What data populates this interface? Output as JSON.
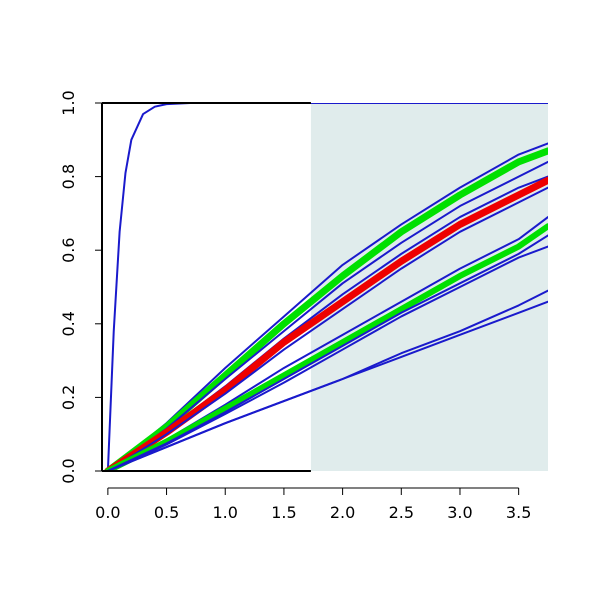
{
  "chart_data": {
    "type": "line",
    "title": "",
    "xlabel": "",
    "ylabel": "",
    "xlim": [
      -0.05,
      3.75
    ],
    "ylim": [
      0,
      1
    ],
    "x_ticks": [
      "0.0",
      "0.5",
      "1.0",
      "1.5",
      "2.0",
      "2.5",
      "3.0",
      "3.5"
    ],
    "y_ticks": [
      "0.0",
      "0.2",
      "0.4",
      "0.6",
      "0.8",
      "1.0"
    ],
    "shaded_region": {
      "x_from": 1.73,
      "x_to": 3.75,
      "color": "#e0ecec"
    },
    "colors": {
      "blue": "#1a1acc",
      "green": "#00e000",
      "red": "#ee0000"
    },
    "series": [
      {
        "color": "blue",
        "width": 2,
        "x": [
          0,
          0.05,
          0.1,
          0.15,
          0.2,
          0.3,
          0.4,
          0.5,
          0.7,
          1.7,
          3.75
        ],
        "y": [
          0,
          0.38,
          0.65,
          0.81,
          0.9,
          0.97,
          0.99,
          0.997,
          1.0,
          1.0,
          1.0
        ]
      },
      {
        "color": "blue",
        "width": 2,
        "x": [
          0,
          0.5,
          1.0,
          1.5,
          2.0,
          2.5,
          3.0,
          3.5,
          3.75
        ],
        "y": [
          0,
          0.13,
          0.28,
          0.42,
          0.56,
          0.67,
          0.77,
          0.86,
          0.89
        ]
      },
      {
        "color": "green",
        "width": 7,
        "x": [
          0,
          0.5,
          1.0,
          1.5,
          2.0,
          2.5,
          3.0,
          3.5,
          3.75
        ],
        "y": [
          0,
          0.12,
          0.26,
          0.4,
          0.53,
          0.65,
          0.75,
          0.84,
          0.87
        ]
      },
      {
        "color": "blue",
        "width": 2,
        "x": [
          0,
          0.5,
          1.0,
          1.5,
          2.0,
          2.5,
          3.0,
          3.5,
          3.75
        ],
        "y": [
          0,
          0.115,
          0.25,
          0.38,
          0.51,
          0.62,
          0.72,
          0.8,
          0.84
        ]
      },
      {
        "color": "blue",
        "width": 2,
        "x": [
          0,
          0.5,
          1.0,
          1.5,
          2.0,
          2.5,
          3.0,
          3.5,
          3.75
        ],
        "y": [
          0,
          0.11,
          0.23,
          0.36,
          0.48,
          0.59,
          0.69,
          0.77,
          0.8
        ]
      },
      {
        "color": "red",
        "width": 7,
        "x": [
          0,
          0.5,
          1.0,
          1.5,
          2.0,
          2.5,
          3.0,
          3.5,
          3.75
        ],
        "y": [
          0,
          0.105,
          0.22,
          0.35,
          0.46,
          0.57,
          0.67,
          0.75,
          0.79
        ]
      },
      {
        "color": "blue",
        "width": 2,
        "x": [
          0,
          0.5,
          1.0,
          1.5,
          2.0,
          2.5,
          3.0,
          3.5,
          3.75
        ],
        "y": [
          0,
          0.1,
          0.21,
          0.33,
          0.44,
          0.55,
          0.65,
          0.73,
          0.77
        ]
      },
      {
        "color": "blue",
        "width": 2,
        "x": [
          0,
          0.5,
          1.0,
          1.5,
          2.0,
          2.5,
          3.0,
          3.5,
          3.75
        ],
        "y": [
          0,
          0.085,
          0.18,
          0.28,
          0.37,
          0.46,
          0.55,
          0.63,
          0.69
        ]
      },
      {
        "color": "green",
        "width": 6,
        "x": [
          0,
          0.5,
          1.0,
          1.5,
          2.0,
          2.5,
          3.0,
          3.5,
          3.75
        ],
        "y": [
          0,
          0.08,
          0.17,
          0.26,
          0.35,
          0.44,
          0.53,
          0.61,
          0.665
        ]
      },
      {
        "color": "blue",
        "width": 2,
        "x": [
          0,
          0.5,
          1.0,
          1.5,
          2.0,
          2.5,
          3.0,
          3.5,
          3.75
        ],
        "y": [
          0,
          0.075,
          0.16,
          0.25,
          0.34,
          0.43,
          0.51,
          0.59,
          0.64
        ]
      },
      {
        "color": "blue",
        "width": 2,
        "x": [
          0,
          0.5,
          1.0,
          1.5,
          2.0,
          2.5,
          3.0,
          3.5,
          3.75
        ],
        "y": [
          0,
          0.072,
          0.155,
          0.24,
          0.33,
          0.42,
          0.5,
          0.58,
          0.61
        ]
      },
      {
        "color": "blue",
        "width": 2,
        "x": [
          0,
          0.5,
          1.0,
          1.5,
          2.0,
          2.5,
          3.0,
          3.5,
          3.75
        ],
        "y": [
          0,
          0.065,
          0.13,
          0.19,
          0.25,
          0.32,
          0.38,
          0.45,
          0.49
        ]
      },
      {
        "color": "blue",
        "width": 2,
        "x": [
          0,
          0.5,
          1.0,
          1.5,
          2.0,
          2.5,
          3.0,
          3.5,
          3.75
        ],
        "y": [
          0,
          0.065,
          0.13,
          0.19,
          0.25,
          0.31,
          0.37,
          0.43,
          0.46
        ]
      }
    ]
  }
}
